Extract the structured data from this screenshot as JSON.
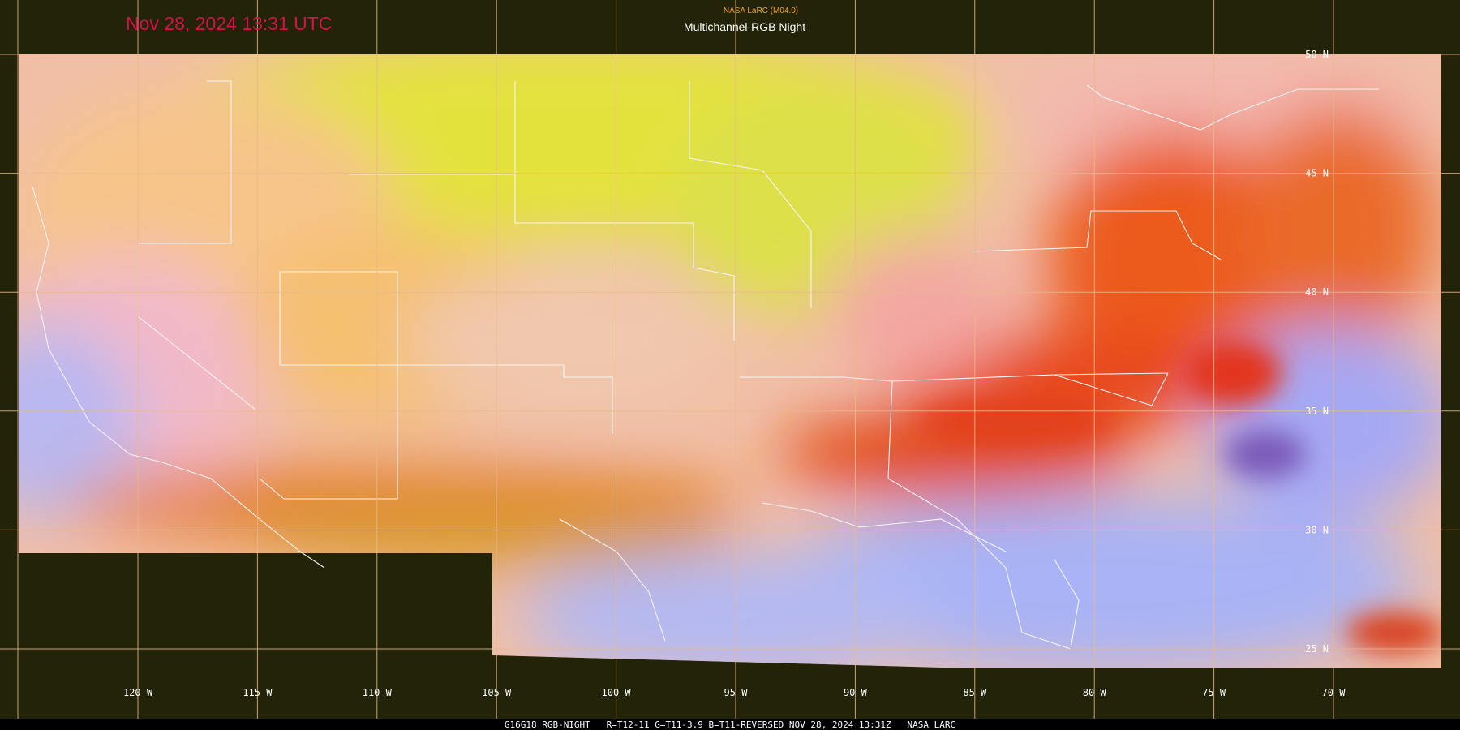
{
  "header": {
    "timestamp": "Nov 28, 2024 13:31 UTC",
    "source": "NASA LaRC (M04.0)",
    "product": "Multichannel-RGB Night"
  },
  "latitude_labels": [
    "50 N",
    "45 N",
    "40 N",
    "35 N",
    "30 N",
    "25 N"
  ],
  "longitude_labels": [
    "120 W",
    "115 W",
    "110 W",
    "105 W",
    "100 W",
    "95 W",
    "90 W",
    "85 W",
    "80 W",
    "75 W",
    "70 W"
  ],
  "footer": "G16G18 RGB-NIGHT   R=T12-11 G=T11-3.9 B=T11-REVERSED NOV 28, 2024 13:31Z   NASA LARC"
}
